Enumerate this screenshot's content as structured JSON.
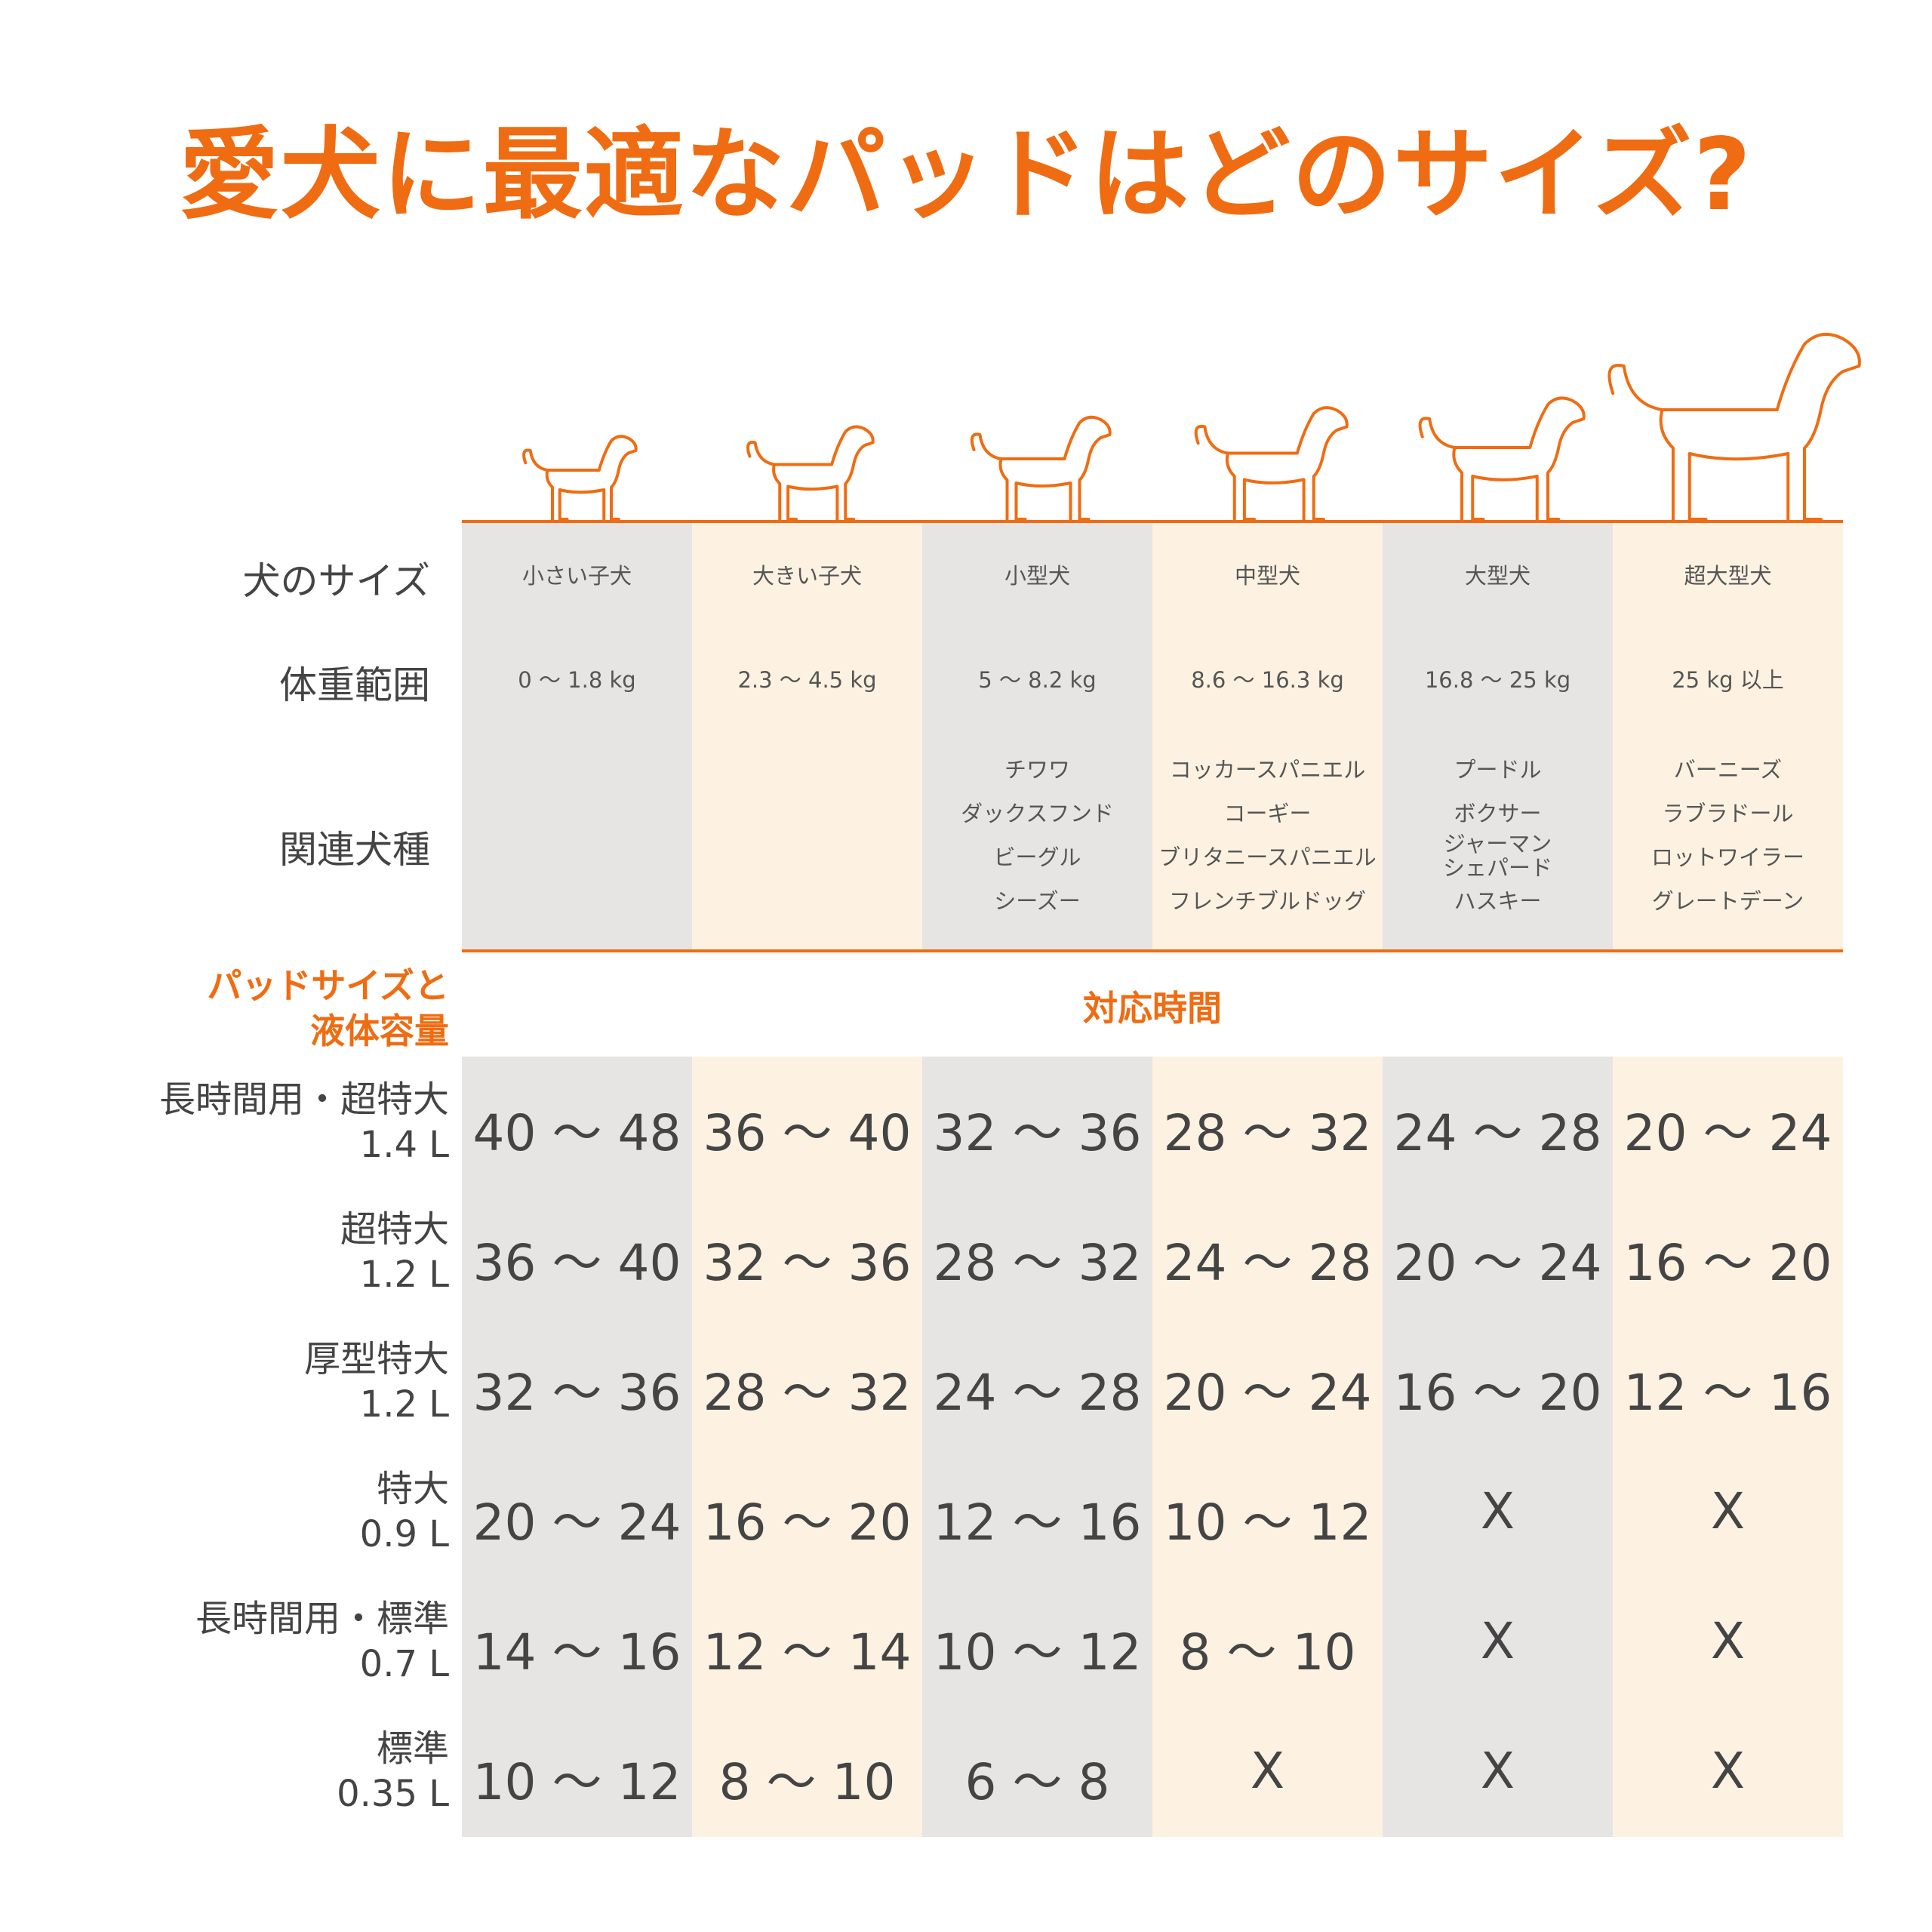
{
  "title": "愛犬に最適なパッドはどのサイズ?",
  "header_labels": [
    "犬のサイズ",
    "体重範囲",
    "関連犬種"
  ],
  "columns": [
    {
      "size": "小さい子犬",
      "weight": "0 〜 1.8 kg",
      "breeds": []
    },
    {
      "size": "大きい子犬",
      "weight": "2.3 〜 4.5 kg",
      "breeds": []
    },
    {
      "size": "小型犬",
      "weight": "5 〜 8.2 kg",
      "breeds": [
        "チワワ",
        "ダックスフンド",
        "ビーグル",
        "シーズー"
      ]
    },
    {
      "size": "中型犬",
      "weight": "8.6 〜 16.3 kg",
      "breeds": [
        "コッカースパニエル",
        "コーギー",
        "ブリタニースパニエル",
        "フレンチブルドッグ"
      ]
    },
    {
      "size": "大型犬",
      "weight": "16.8 〜 25 kg",
      "breeds": [
        "プードル",
        "ボクサー",
        "ジャーマン\nシェパード",
        "ハスキー"
      ]
    },
    {
      "size": "超大型犬",
      "weight": "25 kg 以上",
      "breeds": [
        "バーニーズ",
        "ラブラドール",
        "ロットワイラー",
        "グレートデーン"
      ]
    }
  ],
  "section_label": [
    "パッドサイズと",
    "液体容量"
  ],
  "section_heading": "対応時間",
  "rows": [
    {
      "name": "長時間用・超特大",
      "volume": "1.4 L",
      "cells": [
        "40 〜 48",
        "36 〜 40",
        "32 〜 36",
        "28 〜 32",
        "24 〜 28",
        "20 〜 24"
      ]
    },
    {
      "name": "超特大",
      "volume": "1.2 L",
      "cells": [
        "36 〜 40",
        "32 〜 36",
        "28 〜 32",
        "24 〜 28",
        "20 〜 24",
        "16 〜 20"
      ]
    },
    {
      "name": "厚型特大",
      "volume": "1.2 L",
      "cells": [
        "32 〜 36",
        "28 〜 32",
        "24 〜 28",
        "20 〜 24",
        "16 〜 20",
        "12 〜 16"
      ]
    },
    {
      "name": "特大",
      "volume": "0.9 L",
      "cells": [
        "20 〜 24",
        "16 〜 20",
        "12 〜 16",
        "10 〜 12",
        "X",
        "X"
      ]
    },
    {
      "name": "長時間用・標準",
      "volume": "0.7 L",
      "cells": [
        "14 〜 16",
        "12 〜 14",
        "10 〜 12",
        "8 〜 10",
        "X",
        "X"
      ]
    },
    {
      "name": "標準",
      "volume": "0.35 L",
      "cells": [
        "10 〜 12",
        "8 〜 10",
        "6 〜 8",
        "X",
        "X",
        "X"
      ]
    }
  ]
}
